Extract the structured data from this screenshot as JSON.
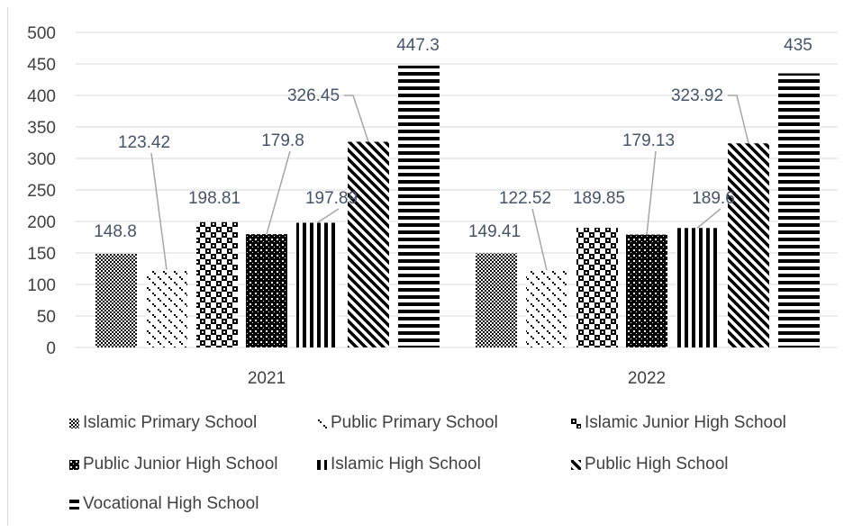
{
  "chart_data": {
    "type": "bar",
    "title": "",
    "xlabel": "",
    "ylabel": "",
    "ylim": [
      0,
      500
    ],
    "yticks": [
      0,
      50,
      100,
      150,
      200,
      250,
      300,
      350,
      400,
      450,
      500
    ],
    "grid": true,
    "legend_position": "bottom",
    "categories": [
      "2021",
      "2022"
    ],
    "series": [
      {
        "name": "Islamic Primary School",
        "values": [
          148.8,
          149.41
        ],
        "labels": [
          "148.8",
          "149.41"
        ],
        "pattern": "checker"
      },
      {
        "name": "Public Primary School",
        "values": [
          123.42,
          122.52
        ],
        "labels": [
          "123.42",
          "122.52"
        ],
        "pattern": "sparse-dots"
      },
      {
        "name": "Islamic Junior High School",
        "values": [
          198.81,
          189.85
        ],
        "labels": [
          "198.81",
          "189.85"
        ],
        "pattern": "big-checker"
      },
      {
        "name": "Public Junior High School",
        "values": [
          179.8,
          179.13
        ],
        "labels": [
          "179.8",
          "179.13"
        ],
        "pattern": "dark-dots"
      },
      {
        "name": "Islamic High School",
        "values": [
          197.89,
          189.6
        ],
        "labels": [
          "197.89",
          "189.6"
        ],
        "pattern": "vertical"
      },
      {
        "name": "Public High School",
        "values": [
          326.45,
          323.92
        ],
        "labels": [
          "326.45",
          "323.92"
        ],
        "pattern": "diagonal"
      },
      {
        "name": "Vocational High School",
        "values": [
          447.3,
          435
        ],
        "labels": [
          "447.3",
          "435"
        ],
        "pattern": "horizontal"
      }
    ],
    "colors": {
      "axis_text": "#404040",
      "label_text": "#44546a",
      "grid": "#d9d9d9",
      "bar": "#000000",
      "leader": "#a6a6a6"
    }
  }
}
